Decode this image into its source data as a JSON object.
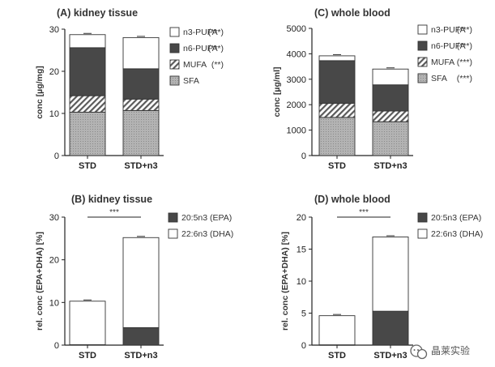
{
  "chart_data": [
    {
      "type": "bar",
      "stacked": true,
      "title": "(A) kidney tissue",
      "ylabel": "conc [µg/mg]",
      "ylim": [
        0,
        30
      ],
      "yticks": [
        0,
        10,
        20,
        30
      ],
      "categories": [
        "STD",
        "STD+n3"
      ],
      "series": [
        {
          "name": "SFA",
          "values": [
            10.3,
            10.7
          ],
          "pattern": "dots",
          "sig": ""
        },
        {
          "name": "MUFA",
          "values": [
            3.9,
            2.7
          ],
          "pattern": "hatch",
          "sig": "(**)"
        },
        {
          "name": "n6-PUFA",
          "values": [
            11.4,
            7.2
          ],
          "pattern": "dark",
          "sig": "(***)"
        },
        {
          "name": "n3-PUFA",
          "values": [
            3.1,
            7.4
          ],
          "pattern": "white",
          "sig": "(***)"
        }
      ],
      "legend_order": [
        "n3-PUFA",
        "n6-PUFA",
        "MUFA",
        "SFA"
      ]
    },
    {
      "type": "bar",
      "stacked": true,
      "title": "(C) whole blood",
      "ylabel": "conc [µg/ml]",
      "ylim": [
        0,
        5000
      ],
      "yticks": [
        0,
        1000,
        2000,
        3000,
        4000,
        5000
      ],
      "categories": [
        "STD",
        "STD+n3"
      ],
      "series": [
        {
          "name": "SFA",
          "values": [
            1500,
            1330
          ],
          "pattern": "dots",
          "sig": "(***)"
        },
        {
          "name": "MUFA",
          "values": [
            550,
            420
          ],
          "pattern": "hatch",
          "sig": "(***)"
        },
        {
          "name": "n6-PUFA",
          "values": [
            1680,
            1030
          ],
          "pattern": "dark",
          "sig": "(***)"
        },
        {
          "name": "n3-PUFA",
          "values": [
            190,
            620
          ],
          "pattern": "white",
          "sig": "(***)"
        }
      ],
      "legend_order": [
        "n3-PUFA",
        "n6-PUFA",
        "MUFA",
        "SFA"
      ]
    },
    {
      "type": "bar",
      "stacked": true,
      "title": "(B) kidney tissue",
      "ylabel": "rel. conc (EPA+DHA) [%]",
      "ylim": [
        0,
        30
      ],
      "yticks": [
        0,
        10,
        20,
        30
      ],
      "categories": [
        "STD",
        "STD+n3"
      ],
      "series": [
        {
          "name": "20:5n3 (EPA)",
          "values": [
            0.1,
            4.1
          ],
          "pattern": "dark",
          "sig": ""
        },
        {
          "name": "22:6n3 (DHA)",
          "values": [
            10.2,
            21.1
          ],
          "pattern": "white",
          "sig": ""
        }
      ],
      "legend_order": [
        "20:5n3 (EPA)",
        "22:6n3 (DHA)"
      ],
      "significance": "***"
    },
    {
      "type": "bar",
      "stacked": true,
      "title": "(D) whole blood",
      "ylabel": "rel. conc (EPA+DHA) [%]",
      "ylim": [
        0,
        20
      ],
      "yticks": [
        0,
        5,
        10,
        15,
        20
      ],
      "categories": [
        "STD",
        "STD+n3"
      ],
      "series": [
        {
          "name": "20:5n3 (EPA)",
          "values": [
            0.05,
            5.3
          ],
          "pattern": "dark",
          "sig": ""
        },
        {
          "name": "22:6n3 (DHA)",
          "values": [
            4.55,
            11.6
          ],
          "pattern": "white",
          "sig": ""
        }
      ],
      "legend_order": [
        "20:5n3 (EPA)",
        "22:6n3 (DHA)"
      ],
      "significance": "***"
    }
  ],
  "watermark": {
    "text": "晶莱实验",
    "icon": "wechat-icon"
  }
}
